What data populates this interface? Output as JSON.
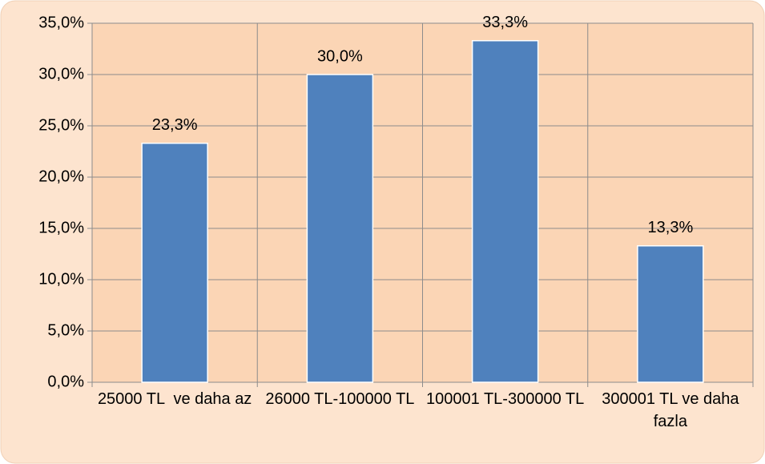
{
  "chart_data": {
    "type": "bar",
    "categories": [
      "25000 TL  ve daha az",
      "26000 TL-100000 TL",
      "100001 TL-300000 TL",
      "300001 TL ve daha fazla"
    ],
    "values": [
      23.3,
      30.0,
      33.3,
      13.3
    ],
    "value_labels": [
      "23,3%",
      "30,0%",
      "33,3%",
      "13,3%"
    ],
    "color": "#4f81bd",
    "ylim": [
      0,
      35
    ],
    "yticks": [
      {
        "value": 0,
        "label": "0,0%"
      },
      {
        "value": 5,
        "label": "5,0%"
      },
      {
        "value": 10,
        "label": "10,0%"
      },
      {
        "value": 15,
        "label": "15,0%"
      },
      {
        "value": 20,
        "label": "20,0%"
      },
      {
        "value": 25,
        "label": "25,0%"
      },
      {
        "value": 30,
        "label": "30,0%"
      },
      {
        "value": 35,
        "label": "35,0%"
      }
    ],
    "grid": true
  }
}
